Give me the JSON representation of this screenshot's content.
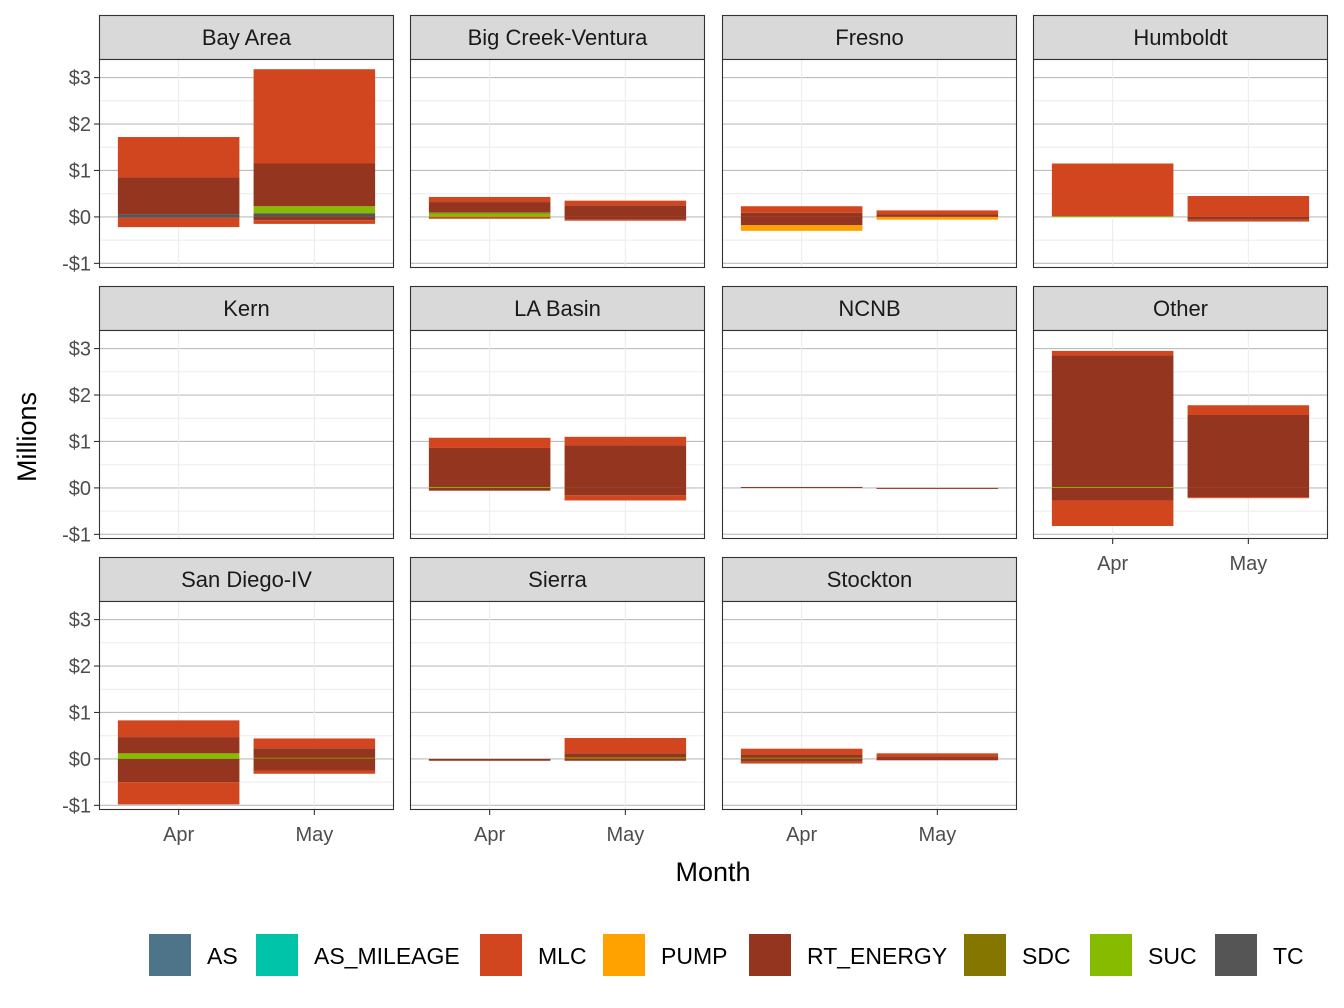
{
  "chart_data": {
    "type": "bar",
    "stacked": true,
    "faceted": true,
    "xlabel": "Month",
    "ylabel": "Millions",
    "ylim": [
      -1.1,
      3.4
    ],
    "y_ticks": [
      -1,
      0,
      1,
      2,
      3
    ],
    "y_tick_labels": [
      "-$1",
      "$0",
      "$1",
      "$2",
      "$3"
    ],
    "categories": [
      "Apr",
      "May"
    ],
    "legend": {
      "position": "bottom"
    },
    "grid": true,
    "series_colors": {
      "AS": "#4e7489",
      "AS_MILEAGE": "#00c4aa",
      "MLC": "#d1461f",
      "PUMP": "#ffa200",
      "RT_ENERGY": "#943520",
      "SDC": "#857600",
      "SUC": "#86bb00",
      "TC": "#555555"
    },
    "series_names": [
      "AS",
      "AS_MILEAGE",
      "MLC",
      "PUMP",
      "RT_ENERGY",
      "SDC",
      "SUC",
      "TC"
    ],
    "panels": [
      {
        "title": "Bay Area",
        "show_x_axis": false,
        "show_y_axis": true,
        "bars": {
          "Apr": [
            [
              "TC",
              -0.02,
              0.06
            ],
            [
              "RT_ENERGY",
              0.06,
              0.85
            ],
            [
              "MLC",
              0.85,
              1.72
            ],
            [
              "MLC",
              -0.22,
              -0.02
            ]
          ],
          "May": [
            [
              "TC",
              0.0,
              0.08
            ],
            [
              "SUC",
              0.08,
              0.23
            ],
            [
              "RT_ENERGY",
              0.23,
              1.15
            ],
            [
              "MLC",
              1.15,
              3.18
            ],
            [
              "RT_ENERGY",
              -0.07,
              0.0
            ],
            [
              "MLC",
              -0.15,
              -0.07
            ]
          ]
        }
      },
      {
        "title": "Big Creek-Ventura",
        "show_x_axis": false,
        "show_y_axis": false,
        "bars": {
          "Apr": [
            [
              "SUC",
              0.0,
              0.07
            ],
            [
              "SDC",
              0.07,
              0.1
            ],
            [
              "RT_ENERGY",
              0.1,
              0.32
            ],
            [
              "MLC",
              0.32,
              0.43
            ],
            [
              "MLC",
              -0.04,
              0.0
            ]
          ],
          "May": [
            [
              "RT_ENERGY",
              0.0,
              0.25
            ],
            [
              "MLC",
              0.25,
              0.35
            ],
            [
              "RT_ENERGY",
              -0.06,
              0.0
            ],
            [
              "MLC",
              -0.08,
              -0.06
            ]
          ]
        }
      },
      {
        "title": "Fresno",
        "show_x_axis": false,
        "show_y_axis": false,
        "bars": {
          "Apr": [
            [
              "RT_ENERGY",
              0.0,
              0.09
            ],
            [
              "MLC",
              0.09,
              0.23
            ],
            [
              "RT_ENERGY",
              -0.18,
              0.0
            ],
            [
              "PUMP",
              -0.3,
              -0.18
            ]
          ],
          "May": [
            [
              "RT_ENERGY",
              0.0,
              0.06
            ],
            [
              "MLC",
              0.06,
              0.14
            ],
            [
              "PUMP",
              -0.06,
              0.0
            ]
          ]
        }
      },
      {
        "title": "Humboldt",
        "show_x_axis": false,
        "show_y_axis": false,
        "bars": {
          "Apr": [
            [
              "SUC",
              0.0,
              0.02
            ],
            [
              "MLC",
              0.02,
              1.15
            ]
          ],
          "May": [
            [
              "MLC",
              0.0,
              0.45
            ],
            [
              "RT_ENERGY",
              -0.06,
              0.0
            ],
            [
              "MLC",
              -0.1,
              -0.06
            ]
          ]
        }
      },
      {
        "title": "Kern",
        "show_x_axis": false,
        "show_y_axis": true,
        "bars": {
          "Apr": [],
          "May": []
        }
      },
      {
        "title": "LA Basin",
        "show_x_axis": false,
        "show_y_axis": false,
        "bars": {
          "Apr": [
            [
              "SUC",
              0.0,
              0.02
            ],
            [
              "RT_ENERGY",
              0.02,
              0.86
            ],
            [
              "MLC",
              0.86,
              1.08
            ],
            [
              "RT_ENERGY",
              -0.06,
              0.0
            ]
          ],
          "May": [
            [
              "RT_ENERGY",
              0.0,
              0.92
            ],
            [
              "MLC",
              0.92,
              1.1
            ],
            [
              "RT_ENERGY",
              -0.16,
              0.0
            ],
            [
              "MLC",
              -0.27,
              -0.16
            ]
          ]
        }
      },
      {
        "title": "NCNB",
        "show_x_axis": false,
        "show_y_axis": false,
        "bars": {
          "Apr": [
            [
              "RT_ENERGY",
              0.0,
              0.02
            ]
          ],
          "May": [
            [
              "RT_ENERGY",
              -0.02,
              0.0
            ]
          ]
        }
      },
      {
        "title": "Other",
        "show_x_axis": true,
        "show_y_axis": false,
        "bars": {
          "Apr": [
            [
              "SUC",
              0.0,
              0.02
            ],
            [
              "RT_ENERGY",
              0.02,
              2.85
            ],
            [
              "MLC",
              2.85,
              2.95
            ],
            [
              "RT_ENERGY",
              -0.27,
              0.0
            ],
            [
              "MLC",
              -0.82,
              -0.27
            ]
          ],
          "May": [
            [
              "RT_ENERGY",
              0.0,
              1.57
            ],
            [
              "MLC",
              1.57,
              1.78
            ],
            [
              "RT_ENERGY",
              -0.2,
              0.0
            ],
            [
              "MLC",
              -0.22,
              -0.2
            ]
          ]
        }
      },
      {
        "title": "San Diego-IV",
        "show_x_axis": true,
        "show_y_axis": true,
        "bars": {
          "Apr": [
            [
              "SUC",
              0.0,
              0.12
            ],
            [
              "RT_ENERGY",
              0.12,
              0.47
            ],
            [
              "MLC",
              0.47,
              0.83
            ],
            [
              "RT_ENERGY",
              -0.5,
              0.0
            ],
            [
              "MLC",
              -0.98,
              -0.5
            ]
          ],
          "May": [
            [
              "SDC",
              0.0,
              0.03
            ],
            [
              "RT_ENERGY",
              0.03,
              0.23
            ],
            [
              "MLC",
              0.23,
              0.44
            ],
            [
              "RT_ENERGY",
              -0.25,
              0.0
            ],
            [
              "MLC",
              -0.32,
              -0.25
            ]
          ]
        }
      },
      {
        "title": "Sierra",
        "show_x_axis": true,
        "show_y_axis": false,
        "bars": {
          "Apr": [
            [
              "RT_ENERGY",
              -0.04,
              0.0
            ]
          ],
          "May": [
            [
              "SDC",
              0.0,
              0.04
            ],
            [
              "RT_ENERGY",
              0.04,
              0.12
            ],
            [
              "MLC",
              0.12,
              0.45
            ],
            [
              "RT_ENERGY",
              -0.04,
              0.0
            ]
          ]
        }
      },
      {
        "title": "Stockton",
        "show_x_axis": true,
        "show_y_axis": false,
        "bars": {
          "Apr": [
            [
              "SDC",
              0.0,
              0.03
            ],
            [
              "RT_ENERGY",
              0.03,
              0.1
            ],
            [
              "MLC",
              0.1,
              0.22
            ],
            [
              "RT_ENERGY",
              -0.06,
              0.0
            ],
            [
              "MLC",
              -0.1,
              -0.06
            ]
          ],
          "May": [
            [
              "RT_ENERGY",
              0.0,
              0.05
            ],
            [
              "MLC",
              0.05,
              0.12
            ],
            [
              "RT_ENERGY",
              -0.03,
              0.0
            ]
          ]
        }
      }
    ]
  }
}
